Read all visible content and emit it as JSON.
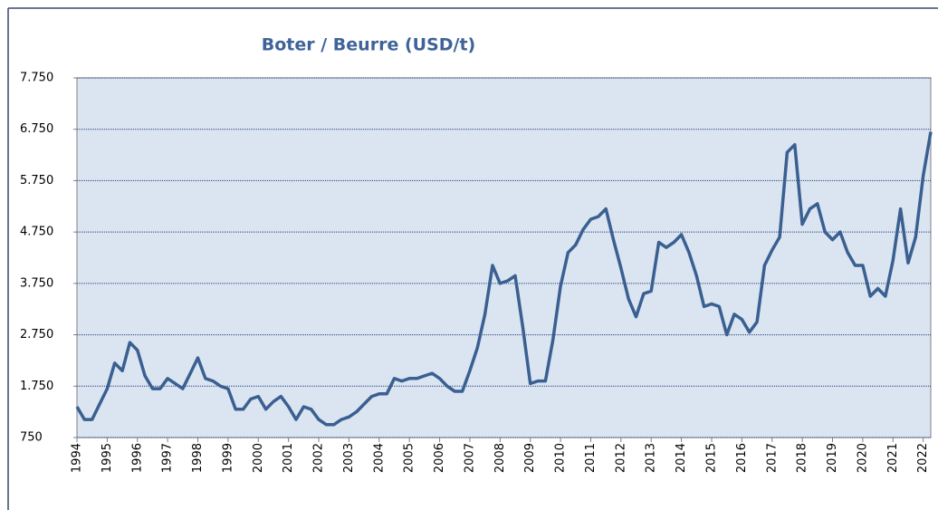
{
  "chart_data": {
    "type": "line",
    "title": "Boter / Beurre (USD/t)",
    "categories": [
      "1994",
      null,
      null,
      null,
      "1995",
      null,
      null,
      null,
      "1996",
      null,
      null,
      null,
      "1997",
      null,
      null,
      null,
      "1998",
      null,
      null,
      null,
      "1999",
      null,
      null,
      null,
      "2000",
      null,
      null,
      null,
      "2001",
      null,
      null,
      null,
      "2002",
      null,
      null,
      null,
      "2003",
      null,
      null,
      null,
      "2004",
      null,
      null,
      null,
      "2005",
      null,
      null,
      null,
      "2006",
      null,
      null,
      null,
      "2007",
      null,
      null,
      null,
      "2008",
      null,
      null,
      null,
      "2009",
      null,
      null,
      null,
      "2010",
      null,
      null,
      null,
      "2011",
      null,
      null,
      null,
      "2012",
      null,
      null,
      null,
      "2013",
      null,
      null,
      null,
      "2014",
      null,
      null,
      null,
      "2015",
      null,
      null,
      null,
      "2016",
      null,
      null,
      null,
      "2017",
      null,
      null,
      null,
      "2018",
      null,
      null,
      null,
      "2019",
      null,
      null,
      null,
      "2020",
      null,
      null,
      null,
      "2021",
      null,
      null,
      null,
      "2022",
      null
    ],
    "series": [
      {
        "color": "#3a5f91",
        "values": [
          1350,
          1100,
          1100,
          1400,
          1700,
          2200,
          2050,
          2600,
          2450,
          1950,
          1700,
          1700,
          1900,
          1800,
          1700,
          2000,
          2300,
          1900,
          1850,
          1750,
          1700,
          1300,
          1300,
          1500,
          1550,
          1300,
          1450,
          1550,
          1350,
          1100,
          1350,
          1300,
          1100,
          1000,
          1000,
          1100,
          1150,
          1250,
          1400,
          1550,
          1600,
          1600,
          1900,
          1850,
          1900,
          1900,
          1950,
          2000,
          1900,
          1750,
          1650,
          1650,
          2050,
          2500,
          3150,
          4100,
          3750,
          3800,
          3900,
          2900,
          1800,
          1850,
          1850,
          2650,
          3700,
          4350,
          4500,
          4800,
          5000,
          5050,
          5200,
          4600,
          4050,
          3450,
          3100,
          3550,
          3600,
          4550,
          4450,
          4550,
          4700,
          4350,
          3900,
          3300,
          3350,
          3300,
          2750,
          3150,
          3050,
          2800,
          3000,
          4100,
          4400,
          4650,
          6300,
          6450,
          4900,
          5200,
          5300,
          4750,
          4600,
          4750,
          4350,
          4100,
          4100,
          3500,
          3650,
          3500,
          4200,
          5200,
          4150,
          4650,
          5850,
          6700
        ]
      }
    ],
    "ylim": [
      750,
      7750
    ],
    "yticks": [
      750,
      {
        "value": 1750,
        "label": "1.750"
      },
      {
        "value": 2750,
        "label": "2.750"
      },
      {
        "value": 3750,
        "label": "3.750"
      },
      {
        "value": 4750,
        "label": "4.750"
      },
      {
        "value": 5750,
        "label": "5.750"
      },
      {
        "value": 6750,
        "label": "6.750"
      },
      {
        "value": 7750,
        "label": "7.750"
      }
    ],
    "grid": true
  }
}
